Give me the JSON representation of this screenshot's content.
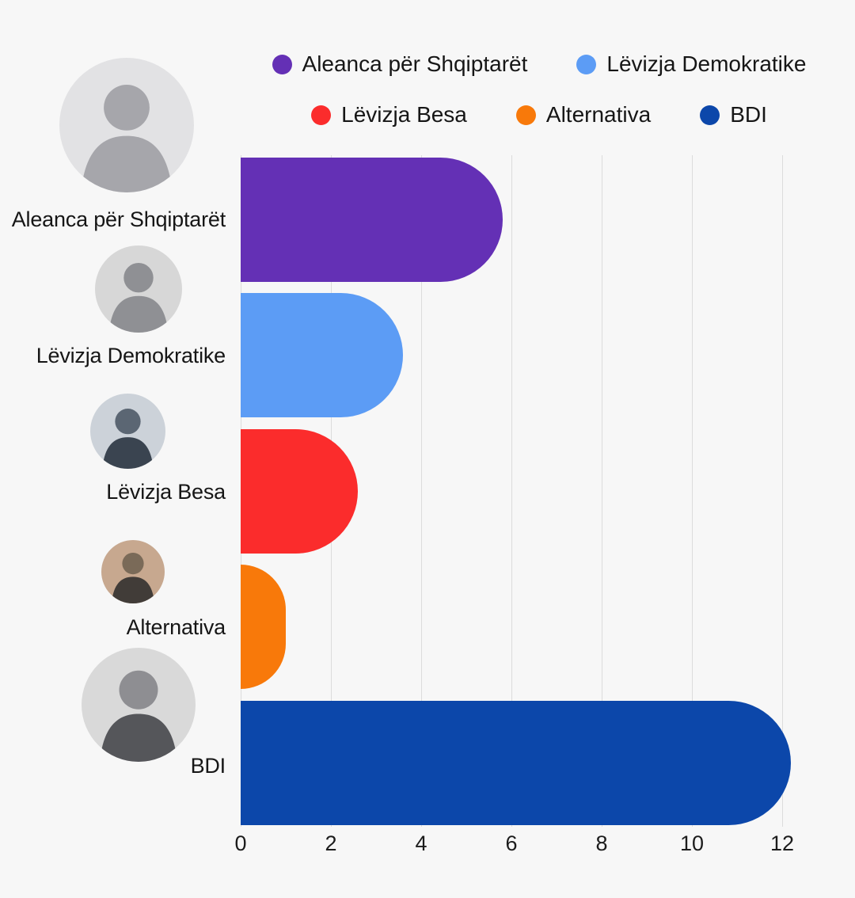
{
  "page": {
    "background_color": "#f7f7f7",
    "gridline_color": "#dcdcdc",
    "text_color": "#161616"
  },
  "chart_data": {
    "type": "bar",
    "orientation": "horizontal",
    "title": "",
    "xlabel": "",
    "ylabel": "",
    "categories": [
      "Aleanca për Shqiptarët",
      "Lëvizja Demokratike",
      "Lëvizja Besa",
      "Alternativa",
      "BDI"
    ],
    "values": [
      5.8,
      3.6,
      2.6,
      1.0,
      12.2
    ],
    "colors": [
      "#6430b5",
      "#5c9cf5",
      "#fb2c2c",
      "#f8790a",
      "#0c47aa"
    ],
    "xlim": [
      0,
      12
    ],
    "x_ticks": [
      0,
      2,
      4,
      6,
      8,
      10,
      12
    ],
    "grid": true,
    "legend_position": "top",
    "bar_end_style": "rounded"
  },
  "icons": {
    "avatar_placeholder": "person-icon"
  }
}
